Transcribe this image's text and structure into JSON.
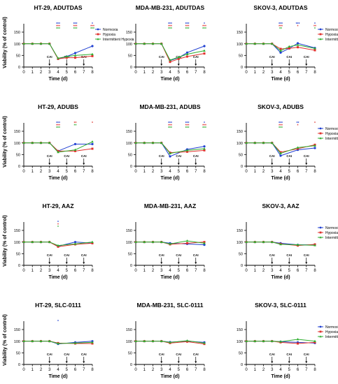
{
  "figure": {
    "y_axis_label": "Viability (% of control)",
    "x_axis_label": "Time (d)",
    "cai_label": "CAI",
    "cai_days": [
      3,
      5,
      7
    ],
    "x_ticks": [
      0,
      1,
      2,
      3,
      4,
      5,
      6,
      7,
      8
    ],
    "y_ticks": [
      0,
      50,
      100,
      150
    ],
    "legend": {
      "entries": [
        {
          "name": "Normoxia",
          "color": "#1f3fd1",
          "marker": "circle"
        },
        {
          "name": "Hypoxia",
          "color": "#e0302b",
          "marker": "square"
        },
        {
          "name": "Intermittent Hypoxia",
          "color": "#2fae2f",
          "marker": "triangle"
        }
      ]
    }
  },
  "chart_data": [
    {
      "type": "line",
      "title": "HT-29, ADUTDAS",
      "ylim": [
        0,
        150
      ],
      "legend": true,
      "x": [
        0,
        1,
        2,
        3,
        4,
        5,
        6,
        8
      ],
      "series": [
        {
          "name": "Normoxia",
          "values": [
            100,
            100,
            100,
            100,
            35,
            45,
            60,
            90
          ]
        },
        {
          "name": "Hypoxia",
          "values": [
            100,
            100,
            100,
            100,
            35,
            40,
            40,
            47
          ]
        },
        {
          "name": "Intermittent Hypoxia",
          "values": [
            100,
            100,
            100,
            100,
            38,
            45,
            50,
            55
          ]
        }
      ],
      "annotations": [
        {
          "x": 4,
          "text": "***",
          "color": "#1f3fd1"
        },
        {
          "x": 4,
          "text": "***",
          "color": "#e0302b"
        },
        {
          "x": 4,
          "text": "***",
          "color": "#2fae2f"
        },
        {
          "x": 6,
          "text": "***",
          "color": "#1f3fd1"
        },
        {
          "x": 6,
          "text": "***",
          "color": "#e0302b"
        },
        {
          "x": 6,
          "text": "***",
          "color": "#2fae2f"
        },
        {
          "x": 8,
          "text": "*",
          "color": "#1f3fd1"
        },
        {
          "x": 8,
          "text": "***",
          "color": "#e0302b"
        },
        {
          "x": 8,
          "text": "***",
          "color": "#2fae2f"
        }
      ]
    },
    {
      "type": "line",
      "title": "MDA-MB-231, ADUTDAS",
      "ylim": [
        0,
        150
      ],
      "legend": false,
      "x": [
        0,
        1,
        2,
        3,
        4,
        5,
        6,
        8
      ],
      "series": [
        {
          "name": "Normoxia",
          "values": [
            100,
            100,
            100,
            100,
            28,
            40,
            62,
            90
          ]
        },
        {
          "name": "Hypoxia",
          "values": [
            100,
            100,
            100,
            100,
            22,
            35,
            45,
            58
          ]
        },
        {
          "name": "Intermittent Hypoxia",
          "values": [
            100,
            100,
            100,
            100,
            30,
            42,
            55,
            70
          ]
        }
      ],
      "annotations": [
        {
          "x": 4,
          "text": "***",
          "color": "#1f3fd1"
        },
        {
          "x": 4,
          "text": "***",
          "color": "#e0302b"
        },
        {
          "x": 4,
          "text": "***",
          "color": "#2fae2f"
        },
        {
          "x": 6,
          "text": "***",
          "color": "#1f3fd1"
        },
        {
          "x": 6,
          "text": "***",
          "color": "#e0302b"
        },
        {
          "x": 6,
          "text": "***",
          "color": "#2fae2f"
        },
        {
          "x": 8,
          "text": "*",
          "color": "#1f3fd1"
        },
        {
          "x": 8,
          "text": "***",
          "color": "#e0302b"
        },
        {
          "x": 8,
          "text": "***",
          "color": "#2fae2f"
        }
      ]
    },
    {
      "type": "line",
      "title": "SKOV-3, ADUTDAS",
      "ylim": [
        0,
        150
      ],
      "legend": true,
      "x": [
        0,
        1,
        2,
        3,
        4,
        5,
        6,
        8
      ],
      "series": [
        {
          "name": "Normoxia",
          "values": [
            100,
            100,
            100,
            100,
            62,
            80,
            102,
            82
          ]
        },
        {
          "name": "Hypoxia",
          "values": [
            100,
            100,
            100,
            100,
            78,
            80,
            85,
            72
          ]
        },
        {
          "name": "Intermittent Hypoxia",
          "values": [
            100,
            100,
            100,
            100,
            70,
            88,
            95,
            80
          ]
        }
      ],
      "annotations": [
        {
          "x": 4,
          "text": "***",
          "color": "#1f3fd1"
        },
        {
          "x": 4,
          "text": "***",
          "color": "#e0302b"
        },
        {
          "x": 4,
          "text": "**",
          "color": "#2fae2f"
        },
        {
          "x": 6,
          "text": "***",
          "color": "#1f3fd1"
        },
        {
          "x": 6,
          "text": "*",
          "color": "#e0302b"
        },
        {
          "x": 8,
          "text": "*",
          "color": "#1f3fd1"
        },
        {
          "x": 8,
          "text": "**",
          "color": "#e0302b"
        },
        {
          "x": 8,
          "text": "*",
          "color": "#2fae2f"
        }
      ]
    },
    {
      "type": "line",
      "title": "HT-29, ADUBS",
      "ylim": [
        0,
        150
      ],
      "legend": false,
      "x": [
        0,
        1,
        2,
        3,
        4,
        6,
        8
      ],
      "series": [
        {
          "name": "Normoxia",
          "values": [
            100,
            100,
            100,
            100,
            65,
            95,
            95
          ]
        },
        {
          "name": "Hypoxia",
          "values": [
            100,
            100,
            100,
            100,
            65,
            65,
            75
          ]
        },
        {
          "name": "Intermittent Hypoxia",
          "values": [
            100,
            100,
            100,
            100,
            60,
            70,
            105
          ]
        }
      ],
      "annotations": [
        {
          "x": 4,
          "text": "***",
          "color": "#1f3fd1"
        },
        {
          "x": 4,
          "text": "***",
          "color": "#e0302b"
        },
        {
          "x": 4,
          "text": "***",
          "color": "#2fae2f"
        },
        {
          "x": 6,
          "text": "**",
          "color": "#e0302b"
        },
        {
          "x": 6,
          "text": "**",
          "color": "#2fae2f"
        },
        {
          "x": 8,
          "text": "*",
          "color": "#e0302b"
        }
      ]
    },
    {
      "type": "line",
      "title": "MDA-MB-231, ADUBS",
      "ylim": [
        0,
        150
      ],
      "legend": false,
      "x": [
        0,
        1,
        2,
        3,
        4,
        6,
        8
      ],
      "series": [
        {
          "name": "Normoxia",
          "values": [
            100,
            100,
            100,
            100,
            42,
            72,
            85
          ]
        },
        {
          "name": "Hypoxia",
          "values": [
            100,
            100,
            100,
            100,
            58,
            62,
            68
          ]
        },
        {
          "name": "Intermittent Hypoxia",
          "values": [
            100,
            100,
            100,
            100,
            55,
            68,
            75
          ]
        }
      ],
      "annotations": [
        {
          "x": 4,
          "text": "***",
          "color": "#1f3fd1"
        },
        {
          "x": 4,
          "text": "***",
          "color": "#e0302b"
        },
        {
          "x": 4,
          "text": "***",
          "color": "#2fae2f"
        },
        {
          "x": 6,
          "text": "***",
          "color": "#1f3fd1"
        },
        {
          "x": 6,
          "text": "***",
          "color": "#e0302b"
        },
        {
          "x": 6,
          "text": "***",
          "color": "#2fae2f"
        },
        {
          "x": 8,
          "text": "*",
          "color": "#1f3fd1"
        },
        {
          "x": 8,
          "text": "***",
          "color": "#e0302b"
        },
        {
          "x": 8,
          "text": "***",
          "color": "#2fae2f"
        }
      ]
    },
    {
      "type": "line",
      "title": "SKOV-3, ADUBS",
      "ylim": [
        0,
        150
      ],
      "legend": true,
      "x": [
        0,
        1,
        2,
        3,
        4,
        6,
        8
      ],
      "series": [
        {
          "name": "Normoxia",
          "values": [
            100,
            100,
            100,
            100,
            45,
            70,
            78
          ]
        },
        {
          "name": "Hypoxia",
          "values": [
            100,
            100,
            100,
            100,
            60,
            75,
            92
          ]
        },
        {
          "name": "Intermittent Hypoxia",
          "values": [
            100,
            100,
            100,
            100,
            55,
            80,
            88
          ]
        }
      ],
      "annotations": [
        {
          "x": 4,
          "text": "***",
          "color": "#1f3fd1"
        },
        {
          "x": 4,
          "text": "***",
          "color": "#e0302b"
        },
        {
          "x": 4,
          "text": "***",
          "color": "#2fae2f"
        },
        {
          "x": 6,
          "text": "**",
          "color": "#1f3fd1"
        },
        {
          "x": 6,
          "text": "*",
          "color": "#e0302b"
        },
        {
          "x": 8,
          "text": "*",
          "color": "#e0302b"
        }
      ]
    },
    {
      "type": "line",
      "title": "HT-29, AAZ",
      "ylim": [
        0,
        150
      ],
      "legend": false,
      "x": [
        0,
        1,
        2,
        3,
        4,
        6,
        8
      ],
      "series": [
        {
          "name": "Normoxia",
          "values": [
            100,
            100,
            100,
            100,
            82,
            100,
            95
          ]
        },
        {
          "name": "Hypoxia",
          "values": [
            100,
            100,
            100,
            100,
            80,
            90,
            95
          ]
        },
        {
          "name": "Intermittent Hypoxia",
          "values": [
            100,
            100,
            100,
            100,
            85,
            92,
            100
          ]
        }
      ],
      "annotations": [
        {
          "x": 4,
          "text": "*",
          "color": "#1f3fd1"
        },
        {
          "x": 4,
          "text": "*",
          "color": "#e0302b"
        },
        {
          "x": 4,
          "text": "*",
          "color": "#2fae2f"
        }
      ]
    },
    {
      "type": "line",
      "title": "MDA-MB-231, AAZ",
      "ylim": [
        0,
        150
      ],
      "legend": false,
      "x": [
        0,
        1,
        2,
        3,
        4,
        6,
        8
      ],
      "series": [
        {
          "name": "Normoxia",
          "values": [
            100,
            100,
            100,
            100,
            95,
            92,
            88
          ]
        },
        {
          "name": "Hypoxia",
          "values": [
            100,
            100,
            100,
            100,
            90,
            95,
            100
          ]
        },
        {
          "name": "Intermittent Hypoxia",
          "values": [
            100,
            100,
            100,
            100,
            92,
            105,
            95
          ]
        }
      ],
      "annotations": []
    },
    {
      "type": "line",
      "title": "SKOV-3, AAZ",
      "ylim": [
        0,
        150
      ],
      "legend": true,
      "x": [
        0,
        1,
        2,
        3,
        4,
        6,
        8
      ],
      "series": [
        {
          "name": "Normoxia",
          "values": [
            100,
            100,
            100,
            100,
            95,
            88,
            88
          ]
        },
        {
          "name": "Hypoxia",
          "values": [
            100,
            100,
            100,
            100,
            92,
            85,
            90
          ]
        },
        {
          "name": "Intermittent Hypoxia",
          "values": [
            100,
            100,
            100,
            100,
            90,
            88,
            86
          ]
        }
      ],
      "annotations": []
    },
    {
      "type": "line",
      "title": "HT-29, SLC-0111",
      "ylim": [
        0,
        150
      ],
      "legend": false,
      "x": [
        0,
        1,
        2,
        3,
        4,
        6,
        8
      ],
      "series": [
        {
          "name": "Normoxia",
          "values": [
            100,
            100,
            100,
            100,
            88,
            95,
            100
          ]
        },
        {
          "name": "Hypoxia",
          "values": [
            100,
            100,
            100,
            100,
            92,
            90,
            90
          ]
        },
        {
          "name": "Intermittent Hypoxia",
          "values": [
            100,
            100,
            100,
            100,
            90,
            92,
            95
          ]
        }
      ],
      "annotations": [
        {
          "x": 4,
          "text": "*",
          "color": "#1f3fd1"
        }
      ]
    },
    {
      "type": "line",
      "title": "MDA-MB-231, SLC-0111",
      "ylim": [
        0,
        150
      ],
      "legend": false,
      "x": [
        0,
        1,
        2,
        3,
        4,
        6,
        8
      ],
      "series": [
        {
          "name": "Normoxia",
          "values": [
            100,
            100,
            100,
            100,
            96,
            100,
            95
          ]
        },
        {
          "name": "Hypoxia",
          "values": [
            100,
            100,
            100,
            100,
            92,
            98,
            88
          ]
        },
        {
          "name": "Intermittent Hypoxia",
          "values": [
            100,
            100,
            100,
            100,
            95,
            102,
            92
          ]
        }
      ],
      "annotations": []
    },
    {
      "type": "line",
      "title": "SKOV-3, SLC-0111",
      "ylim": [
        0,
        150
      ],
      "legend": true,
      "x": [
        0,
        1,
        2,
        3,
        4,
        6,
        8
      ],
      "series": [
        {
          "name": "Normoxia",
          "values": [
            100,
            100,
            100,
            100,
            98,
            95,
            92
          ]
        },
        {
          "name": "Hypoxia",
          "values": [
            100,
            100,
            100,
            100,
            95,
            90,
            95
          ]
        },
        {
          "name": "Intermittent Hypoxia",
          "values": [
            100,
            100,
            100,
            100,
            98,
            108,
            100
          ]
        }
      ],
      "annotations": []
    }
  ]
}
